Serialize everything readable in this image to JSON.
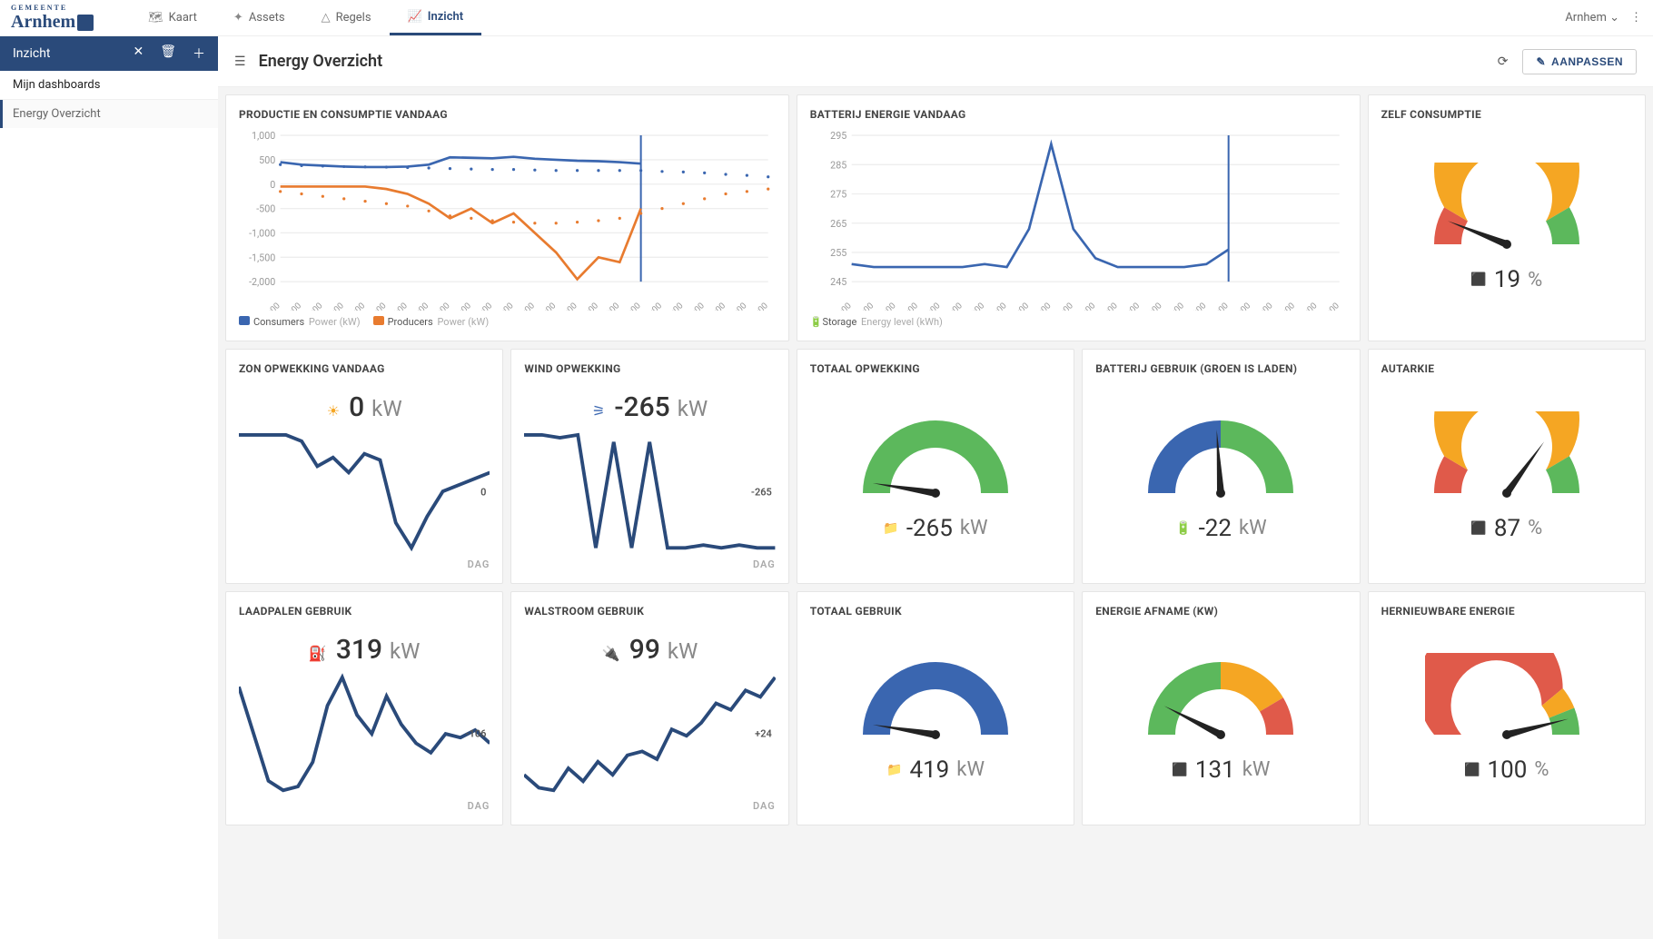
{
  "brand": {
    "small": "GEMEENTE",
    "name": "Arnhem"
  },
  "nav": {
    "tabs": [
      {
        "label": "Kaart",
        "icon": "🗺"
      },
      {
        "label": "Assets",
        "icon": "✦"
      },
      {
        "label": "Regels",
        "icon": "△"
      },
      {
        "label": "Inzicht",
        "icon": "📈",
        "active": true
      }
    ],
    "user_scope": "Arnhem"
  },
  "sidebar": {
    "title": "Inzicht",
    "section": "Mijn dashboards",
    "items": [
      {
        "label": "Energy Overzicht",
        "active": true
      }
    ]
  },
  "page": {
    "title": "Energy Overzicht",
    "edit_button": "AANPASSEN"
  },
  "colors": {
    "blue": "#3a66b0",
    "orange": "#e87b2f",
    "green": "#5cb85c",
    "red": "#e05a4a",
    "yellow": "#f5a623",
    "dark": "#333333",
    "grid": "#eeeeee",
    "purple_icon": "#8a4aa5",
    "teal_icon": "#00a0a0",
    "red_icon": "#c0392b",
    "grey_icon": "#999999"
  },
  "charts": {
    "production": {
      "title": "PRODUCTIE EN CONSUMPTIE VANDAAG",
      "y_ticks": [
        "1,000",
        "500",
        "0",
        "-500",
        "-1,000",
        "-1,500",
        "-2,000"
      ],
      "y_min": -2000,
      "y_max": 1000,
      "x_labels": [
        "01:00",
        "02:00",
        "03:00",
        "04:00",
        "05:00",
        "06:00",
        "07:00",
        "08:00",
        "09:00",
        "10:00",
        "11:00",
        "12:00",
        "13:00",
        "14:00",
        "15:00",
        "16:00",
        "17:00",
        "18:00",
        "19:00",
        "20:00",
        "21:00",
        "22:00",
        "23:00",
        "00:00"
      ],
      "now_index": 17,
      "consumers_solid": [
        450,
        400,
        380,
        360,
        350,
        350,
        360,
        400,
        550,
        540,
        530,
        560,
        520,
        500,
        480,
        470,
        450,
        420
      ],
      "consumers_dotted": [
        400,
        380,
        370,
        360,
        355,
        350,
        340,
        330,
        320,
        310,
        300,
        300,
        290,
        280,
        280,
        280,
        280,
        280,
        260,
        250,
        230,
        200,
        180,
        150
      ],
      "producers_solid": [
        -50,
        -50,
        -50,
        -50,
        -50,
        -100,
        -200,
        -400,
        -700,
        -500,
        -800,
        -600,
        -1000,
        -1400,
        -1950,
        -1500,
        -1600,
        -500
      ],
      "producers_dotted": [
        -150,
        -200,
        -250,
        -300,
        -350,
        -400,
        -450,
        -550,
        -650,
        -700,
        -750,
        -780,
        -800,
        -800,
        -780,
        -750,
        -700,
        -600,
        -500,
        -400,
        -300,
        -200,
        -150,
        -100
      ],
      "legend": [
        {
          "swatch": "#3a66b0",
          "label": "Consumers",
          "sub": "Power (kW)"
        },
        {
          "swatch": "#e87b2f",
          "label": "Producers",
          "sub": "Power (kW)"
        }
      ],
      "line_width": 2
    },
    "battery": {
      "title": "BATTERIJ ENERGIE VANDAAG",
      "y_ticks": [
        "295",
        "285",
        "275",
        "265",
        "255",
        "245"
      ],
      "y_min": 245,
      "y_max": 295,
      "x_labels": [
        "01:00",
        "02:00",
        "03:00",
        "04:00",
        "05:00",
        "06:00",
        "07:00",
        "08:00",
        "09:00",
        "10:00",
        "11:00",
        "12:00",
        "13:00",
        "14:00",
        "15:00",
        "16:00",
        "17:00",
        "18:00",
        "19:00",
        "20:00",
        "21:00",
        "22:00",
        "23:00"
      ],
      "now_index": 17,
      "series": [
        251,
        250,
        250,
        250,
        250,
        250,
        251,
        250,
        263,
        292,
        263,
        253,
        250,
        250,
        250,
        250,
        251,
        256
      ],
      "legend": [
        {
          "swatch_icon": "🔋",
          "swatch_color": "#3a66b0",
          "label": "Storage",
          "sub": "Energy level (kWh)"
        }
      ],
      "line_width": 2
    }
  },
  "tiles": {
    "zelf_consumptie": {
      "title": "ZELF CONSUMPTIE",
      "value": "19",
      "unit": "%",
      "icon": "⬛",
      "icon_color": "#8a4aa5",
      "gauge": {
        "type": "traffic",
        "needle": 0.12,
        "segments": [
          {
            "color": "#e05a4a",
            "from": 0.0,
            "to": 0.17
          },
          {
            "color": "#f5a623",
            "from": 0.17,
            "to": 0.83
          },
          {
            "color": "#5cb85c",
            "from": 0.83,
            "to": 1.0
          }
        ]
      }
    },
    "zon": {
      "title": "ZON OPWEKKING VANDAAG",
      "value": "0",
      "unit": "kW",
      "icon": "☀",
      "icon_color": "#f5a623",
      "footer": "DAG",
      "side_label": "0",
      "spark": [
        0,
        0,
        0,
        0,
        -5,
        -25,
        -18,
        -30,
        -15,
        -20,
        -70,
        -90,
        -65,
        -45,
        -40,
        -35,
        -30
      ],
      "spark_color": "#2a4a7a"
    },
    "wind": {
      "title": "WIND OPWEKKING",
      "value": "-265",
      "unit": "kW",
      "icon": "⚞",
      "icon_color": "#3a66b0",
      "footer": "DAG",
      "side_label": "-265",
      "spark": [
        -10,
        -10,
        -12,
        -10,
        -90,
        -15,
        -90,
        -15,
        -90,
        -90,
        -88,
        -90,
        -88,
        -90,
        -90
      ],
      "spark_color": "#2a4a7a"
    },
    "totaal_opwekking": {
      "title": "TOTAAL OPWEKKING",
      "value": "-265",
      "unit": "kW",
      "icon": "📁",
      "icon_color": "#999999",
      "gauge": {
        "type": "single",
        "color": "#5cb85c",
        "needle": 0.05
      }
    },
    "batterij_gebruik": {
      "title": "BATTERIJ GEBRUIK (GROEN IS LADEN)",
      "value": "-22",
      "unit": "kW",
      "icon": "🔋",
      "icon_color": "#00a0a0",
      "gauge": {
        "type": "split",
        "left_color": "#3a66b0",
        "right_color": "#5cb85c",
        "needle": 0.48
      }
    },
    "autarkie": {
      "title": "AUTARKIE",
      "value": "87",
      "unit": "%",
      "icon": "⬛",
      "icon_color": "#8a4aa5",
      "gauge": {
        "type": "traffic",
        "needle": 0.7,
        "segments": [
          {
            "color": "#e05a4a",
            "from": 0.0,
            "to": 0.17
          },
          {
            "color": "#f5a623",
            "from": 0.17,
            "to": 0.83
          },
          {
            "color": "#5cb85c",
            "from": 0.83,
            "to": 1.0
          }
        ]
      }
    },
    "laadpalen": {
      "title": "LAADPALEN GEBRUIK",
      "value": "319",
      "unit": "kW",
      "icon": "⛽",
      "icon_color": "#c0392b",
      "footer": "DAG",
      "side_label": "-106",
      "spark": [
        65,
        40,
        15,
        10,
        12,
        25,
        55,
        70,
        50,
        40,
        60,
        45,
        35,
        30,
        40,
        38,
        42,
        35
      ],
      "spark_color": "#2a4a7a"
    },
    "walstroom": {
      "title": "WALSTROOM GEBRUIK",
      "value": "99",
      "unit": "kW",
      "icon": "🔌",
      "icon_color": "#c0392b",
      "footer": "DAG",
      "side_label": "+24",
      "spark": [
        20,
        10,
        8,
        25,
        15,
        30,
        20,
        35,
        38,
        32,
        55,
        50,
        60,
        75,
        70,
        85,
        80,
        95
      ],
      "spark_color": "#2a4a7a"
    },
    "totaal_gebruik": {
      "title": "TOTAAL GEBRUIK",
      "value": "419",
      "unit": "kW",
      "icon": "📁",
      "icon_color": "#999999",
      "gauge": {
        "type": "single",
        "color": "#3a66b0",
        "needle": 0.05
      }
    },
    "energie_afname": {
      "title": "ENERGIE AFNAME (KW)",
      "value": "131",
      "unit": "kW",
      "icon": "⬛",
      "icon_color": "#8a4aa5",
      "gauge": {
        "type": "traffic_rev",
        "needle": 0.15,
        "segments": [
          {
            "color": "#5cb85c",
            "from": 0.0,
            "to": 0.5
          },
          {
            "color": "#f5a623",
            "from": 0.5,
            "to": 0.83
          },
          {
            "color": "#e05a4a",
            "from": 0.83,
            "to": 1.0
          }
        ]
      }
    },
    "hernieuwbaar": {
      "title": "HERNIEUWBARE ENERGIE",
      "value": "100",
      "unit": "%",
      "icon": "⬛",
      "icon_color": "#8a4aa5",
      "gauge": {
        "type": "traffic",
        "needle": 0.92,
        "segments": [
          {
            "color": "#e05a4a",
            "from": 0.0,
            "to": 0.78
          },
          {
            "color": "#f5a623",
            "from": 0.78,
            "to": 0.88
          },
          {
            "color": "#5cb85c",
            "from": 0.88,
            "to": 1.0
          }
        ]
      }
    }
  }
}
